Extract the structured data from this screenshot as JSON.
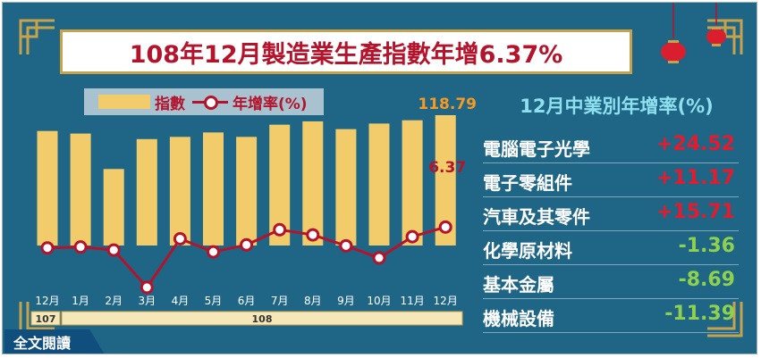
{
  "title": "108年12月製造業生產指數年增6.37%",
  "legend": {
    "bar_label": "指數",
    "line_label": "年增率(%)"
  },
  "chart_data": [
    {
      "type": "bar",
      "categories": [
        "12月",
        "1月",
        "2月",
        "3月",
        "4月",
        "5月",
        "6月",
        "7月",
        "8月",
        "9月",
        "10月",
        "11月",
        "12月"
      ],
      "year_labels": [
        "107",
        "108"
      ],
      "series": [
        {
          "name": "指數",
          "values": [
            111.66,
            110.5,
            94.5,
            108.0,
            109.0,
            111.0,
            109.0,
            114.5,
            116.0,
            112.5,
            115.0,
            116.5,
            118.79
          ]
        },
        {
          "name": "年增率(%)",
          "values": [
            -0.5,
            -0.2,
            -1.2,
            -13.5,
            2.5,
            -1.8,
            0.5,
            5.5,
            3.8,
            0.2,
            -3.8,
            3.2,
            6.37
          ]
        }
      ],
      "data_labels": {
        "last_bar": "118.79",
        "last_point": "6.37"
      },
      "colors": {
        "bar": "#f2cc6b",
        "line": "#b3132b",
        "marker_fill": "#ffffff",
        "bar_label": "#f59a23",
        "line_label": "#b3132b"
      }
    },
    {
      "type": "table",
      "title": "12月中業別年增率(%)",
      "rows": [
        {
          "name": "電腦電子光學",
          "value": "+24.52",
          "color": "#e8192c"
        },
        {
          "name": "電子零組件",
          "value": "+11.17",
          "color": "#e8192c"
        },
        {
          "name": "汽車及其零件",
          "value": "+15.71",
          "color": "#e8192c"
        },
        {
          "name": "化學原材料",
          "value": "-1.36",
          "color": "#8fd14f"
        },
        {
          "name": "基本金屬",
          "value": "-8.69",
          "color": "#8fd14f"
        },
        {
          "name": "機械設備",
          "value": "-11.39",
          "color": "#8fd14f"
        }
      ]
    }
  ],
  "button": {
    "label": "全文閱讀"
  },
  "colors": {
    "background": "#1f6686",
    "title_text": "#b3132b",
    "title_border": "#c8a24a",
    "side_title": "#8fe0ee"
  }
}
